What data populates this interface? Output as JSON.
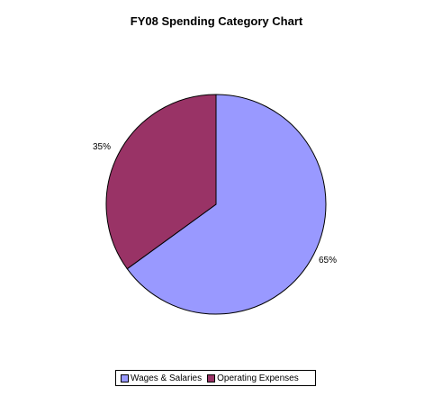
{
  "chart_data": {
    "type": "pie",
    "title": "FY08 Spending Category Chart",
    "slices": [
      {
        "name": "Wages & Salaries",
        "value": 65,
        "label": "65%",
        "color": "#9999ff"
      },
      {
        "name": "Operating Expenses",
        "value": 35,
        "label": "35%",
        "color": "#993366"
      }
    ],
    "legend_position": "bottom"
  }
}
